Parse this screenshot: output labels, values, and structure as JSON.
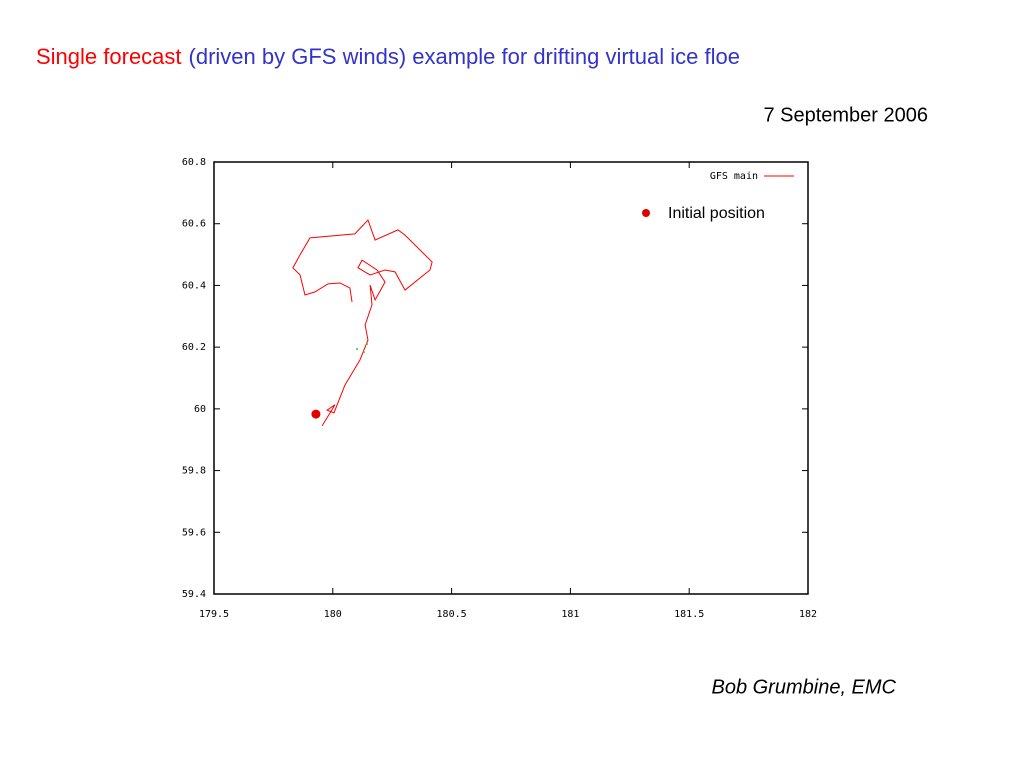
{
  "header": {
    "title_highlight": "Single forecast",
    "title_rest": "(driven by GFS winds) example for drifting virtual ice floe",
    "date": "7 September 2006"
  },
  "chart_data": {
    "type": "line",
    "xlim": [
      179.5,
      182
    ],
    "ylim": [
      59.4,
      60.8
    ],
    "xticks": [
      179.5,
      180,
      180.5,
      181,
      181.5,
      182
    ],
    "yticks": [
      59.4,
      59.6,
      59.8,
      60,
      60.2,
      60.4,
      60.6,
      60.8
    ],
    "series": [
      {
        "name": "GFS main",
        "color": "#ff0000",
        "x": [
          179.955,
          180.009,
          179.976,
          180.005,
          180.051,
          180.114,
          180.148,
          180.136,
          180.165,
          180.157,
          180.178,
          180.22,
          180.186,
          180.123,
          180.106,
          180.157,
          180.22,
          180.262,
          180.304,
          180.409,
          180.418,
          180.304,
          180.274,
          180.178,
          180.148,
          180.093,
          179.904,
          179.862,
          179.832,
          179.862,
          179.883,
          179.925,
          179.98,
          180.03,
          180.072,
          180.081
        ],
        "values": [
          59.945,
          60.013,
          59.996,
          59.987,
          60.077,
          60.158,
          60.223,
          60.272,
          60.337,
          60.401,
          60.353,
          60.411,
          60.45,
          60.482,
          60.457,
          60.434,
          60.45,
          60.444,
          60.385,
          60.45,
          60.476,
          60.563,
          60.58,
          60.547,
          60.612,
          60.567,
          60.554,
          60.499,
          60.457,
          60.434,
          60.369,
          60.379,
          60.405,
          60.408,
          60.392,
          60.346
        ]
      }
    ],
    "markers": {
      "color": "#33cc33",
      "x": [
        180.102,
        180.131,
        180.144
      ],
      "y": [
        60.194,
        60.184,
        60.21
      ]
    },
    "initial_point": {
      "name": "Initial position",
      "color": "#e00000",
      "x": 179.929,
      "y": 59.983
    }
  },
  "footer": {
    "author": "Bob Grumbine, EMC"
  }
}
